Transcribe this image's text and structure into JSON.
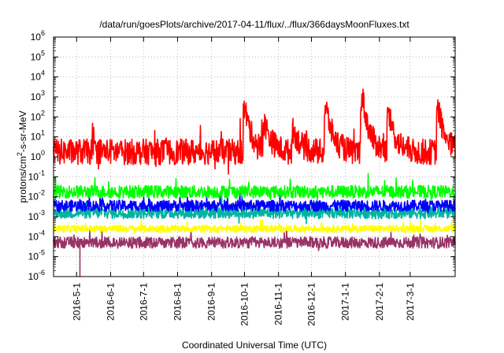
{
  "chart_data": {
    "type": "line",
    "title": "/data/run/goesPlots/archive/2017-04-11/flux/../flux/366daysMoonFluxes.txt",
    "xlabel": "Coordinated Universal Time (UTC)",
    "ylabel": {
      "pre": "protons/cm",
      "sup": "2",
      "post": "-s-sr-MeV"
    },
    "yscale": "log",
    "ylim_exp": [
      -6,
      6
    ],
    "y_ticks": [
      {
        "base": "10",
        "exp": "6"
      },
      {
        "base": "10",
        "exp": "5"
      },
      {
        "base": "10",
        "exp": "4"
      },
      {
        "base": "10",
        "exp": "3"
      },
      {
        "base": "10",
        "exp": "2"
      },
      {
        "base": "10",
        "exp": "1"
      },
      {
        "base": "10",
        "exp": "0"
      },
      {
        "base": "10",
        "exp": "-1"
      },
      {
        "base": "10",
        "exp": "-2"
      },
      {
        "base": "10",
        "exp": "-3"
      },
      {
        "base": "10",
        "exp": "-4"
      },
      {
        "base": "10",
        "exp": "-5"
      },
      {
        "base": "10",
        "exp": "-6"
      }
    ],
    "xlim": [
      "2016-04-10",
      "2017-04-11"
    ],
    "x_ticks": [
      "2016-5-1",
      "2016-6-1",
      "2016-7-1",
      "2016-8-1",
      "2016-9-1",
      "2016-10-1",
      "2016-11-1",
      "2016-12-1",
      "2017-1-1",
      "2017-2-1",
      "2017-3-1"
    ],
    "grid": true,
    "series": [
      {
        "color": "#993366",
        "level_exp": -4.3,
        "noise": 0.28,
        "drop": {
          "x": "2016-5-4",
          "to_exp": -6
        }
      },
      {
        "color": "#ffff00",
        "level_exp": -3.6,
        "noise": 0.18
      },
      {
        "color": "#00b3a0",
        "level_exp": -2.8,
        "noise": 0.3
      },
      {
        "color": "#0000ff",
        "level_exp": -2.45,
        "noise": 0.28
      },
      {
        "color": "#00ff00",
        "level_exp": -1.75,
        "noise": 0.32
      },
      {
        "color": "#ff0000",
        "level_exp": 0.25,
        "noise": 0.65,
        "events": [
          {
            "x": "2016-5-20",
            "peak_exp": 0.3
          },
          {
            "x": "2016-9-20",
            "peak_exp": -0.9
          },
          {
            "x": "2016-10-2",
            "peak_exp": 2.3
          },
          {
            "x": "2016-10-20",
            "peak_exp": 1.6
          },
          {
            "x": "2016-11-15",
            "peak_exp": 1.3
          },
          {
            "x": "2016-12-15",
            "peak_exp": 2.3
          },
          {
            "x": "2017-1-17",
            "peak_exp": 2.9
          },
          {
            "x": "2017-2-10",
            "peak_exp": 2.0
          },
          {
            "x": "2017-3-27",
            "peak_exp": 2.3
          }
        ]
      }
    ]
  }
}
